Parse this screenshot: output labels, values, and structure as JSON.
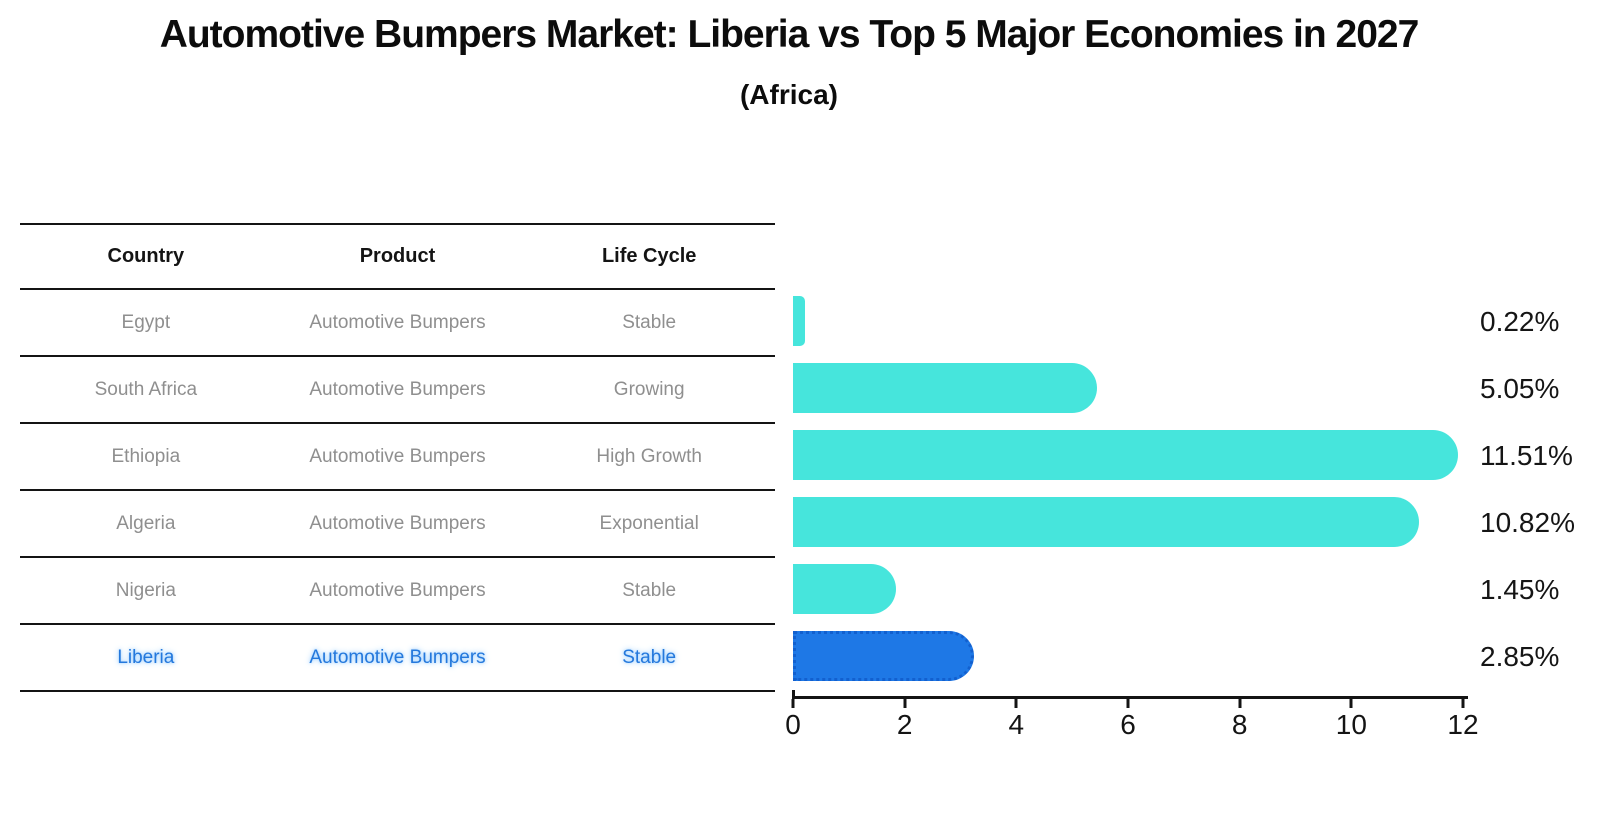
{
  "title": "Automotive Bumpers Market: Liberia vs Top 5 Major Economies in 2027",
  "subtitle": "(Africa)",
  "table": {
    "headers": [
      "Country",
      "Product",
      "Life Cycle"
    ],
    "rows": [
      {
        "country": "Egypt",
        "product": "Automotive Bumpers",
        "life_cycle": "Stable",
        "highlight": false
      },
      {
        "country": "South Africa",
        "product": "Automotive Bumpers",
        "life_cycle": "Growing",
        "highlight": false
      },
      {
        "country": "Ethiopia",
        "product": "Automotive Bumpers",
        "life_cycle": "High Growth",
        "highlight": false
      },
      {
        "country": "Algeria",
        "product": "Automotive Bumpers",
        "life_cycle": "Exponential",
        "highlight": false
      },
      {
        "country": "Nigeria",
        "product": "Automotive Bumpers",
        "life_cycle": "Stable",
        "highlight": false
      },
      {
        "country": "Liberia",
        "product": "Automotive Bumpers",
        "life_cycle": "Stable",
        "highlight": true
      }
    ]
  },
  "chart_data": {
    "type": "bar",
    "orientation": "horizontal",
    "title": "Automotive Bumpers Market: Liberia vs Top 5 Major Economies in 2027 (Africa)",
    "categories": [
      "Egypt",
      "South Africa",
      "Ethiopia",
      "Algeria",
      "Nigeria",
      "Liberia"
    ],
    "values": [
      0.22,
      5.05,
      11.51,
      10.82,
      1.45,
      2.85
    ],
    "value_labels": [
      "0.22%",
      "5.05%",
      "11.51%",
      "10.82%",
      "1.45%",
      "2.85%"
    ],
    "xlabel": "",
    "ylabel": "",
    "xlim": [
      0,
      12
    ],
    "x_ticks": [
      "0",
      "2",
      "4",
      "6",
      "8",
      "10",
      "12"
    ],
    "grid": false,
    "legend": false,
    "highlight_index": 5,
    "colors": {
      "bar": "#46e5dc",
      "highlight_bar": "#1e78e6",
      "highlight_edge": "#1260cf",
      "axis": "#141414",
      "row_text": "#8f8f8f",
      "highlight_text": "#2478dc"
    }
  }
}
